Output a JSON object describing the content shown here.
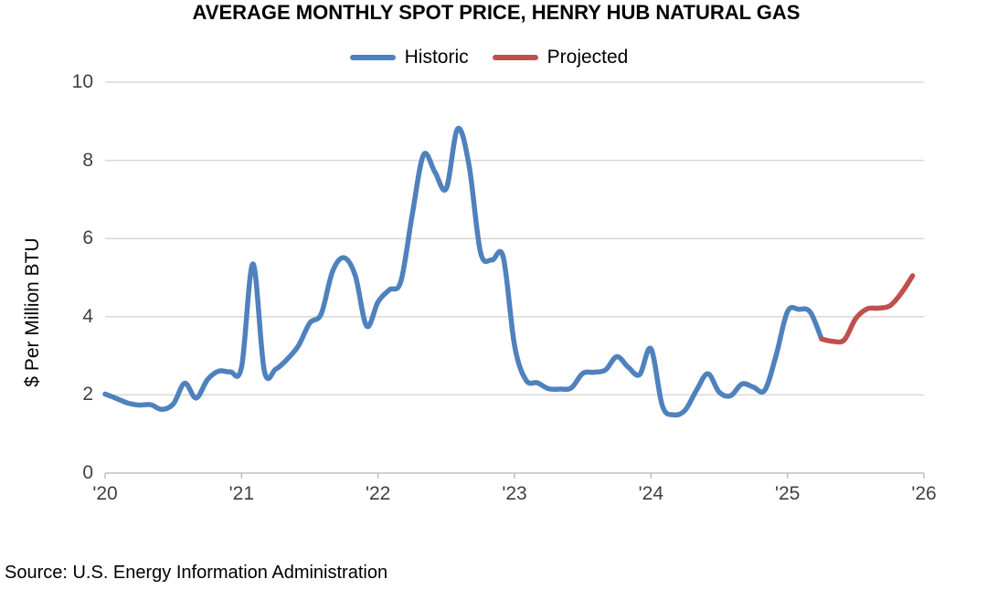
{
  "chart_data": {
    "type": "line",
    "title": "AVERAGE MONTHLY SPOT PRICE, HENRY HUB NATURAL GAS",
    "ylabel": "$ Per Million BTU",
    "xlabel": "",
    "source": "Source: U.S. Energy Information Administration",
    "ylim": [
      0,
      10
    ],
    "yticks": [
      0,
      2,
      4,
      6,
      8,
      10
    ],
    "xtick_labels": [
      "'20",
      "'21",
      "'22",
      "'23",
      "'24",
      "'25",
      "'26"
    ],
    "x_range_months": [
      "2020-01",
      "2026-01"
    ],
    "grid": "horizontal",
    "legend_position": "top-center",
    "colors": {
      "historic": "#4F81BD",
      "projected": "#C0504D",
      "gridline": "#D9D9D9",
      "axis": "#BFBFBF",
      "tick_text": "#404040",
      "background": "#FFFFFF"
    },
    "series": [
      {
        "name": "Historic",
        "color": "#4F81BD",
        "start": "2020-01",
        "values": [
          2.02,
          1.91,
          1.79,
          1.74,
          1.75,
          1.63,
          1.77,
          2.3,
          1.92,
          2.39,
          2.61,
          2.59,
          2.71,
          5.35,
          2.62,
          2.66,
          2.91,
          3.26,
          3.84,
          4.07,
          5.16,
          5.51,
          5.05,
          3.76,
          4.38,
          4.69,
          4.9,
          6.6,
          8.14,
          7.7,
          7.28,
          8.81,
          7.88,
          5.66,
          5.45,
          5.53,
          3.27,
          2.38,
          2.31,
          2.16,
          2.15,
          2.18,
          2.55,
          2.58,
          2.64,
          2.98,
          2.71,
          2.52,
          3.18,
          1.72,
          1.49,
          1.61,
          2.12,
          2.54,
          2.07,
          1.98,
          2.28,
          2.2,
          2.12,
          3.01,
          4.13,
          4.19,
          4.12,
          3.43
        ]
      },
      {
        "name": "Projected",
        "color": "#C0504D",
        "start": "2025-04",
        "values": [
          3.43,
          3.37,
          3.41,
          3.95,
          4.2,
          4.22,
          4.28,
          4.6,
          5.05
        ]
      }
    ]
  }
}
